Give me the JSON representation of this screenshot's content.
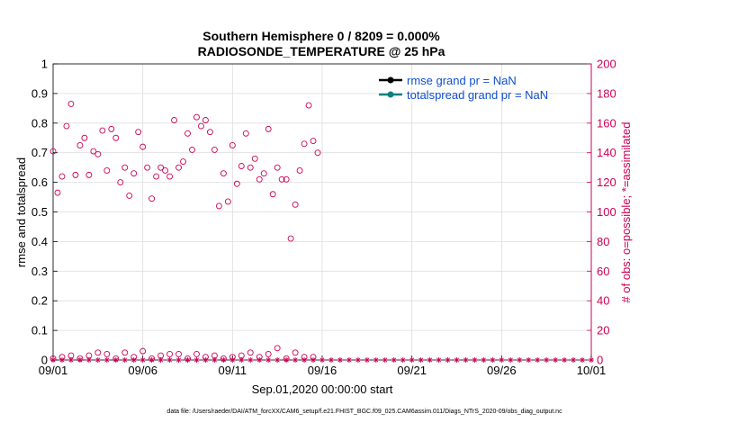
{
  "chart_data": {
    "type": "scatter",
    "title": "Southern Hemisphere 0 / 8209 = 0.000%",
    "subtitle": "RADIOSONDE_TEMPERATURE @ 25 hPa",
    "xlabel": "Sep.01,2020 00:00:00 start",
    "ylabel_left": "rmse and totalspread",
    "ylabel_right": "# of obs: o=possible; *=assimilated",
    "xlim": [
      0,
      30
    ],
    "xticks": [
      {
        "x": 0,
        "label": "09/01"
      },
      {
        "x": 5,
        "label": "09/06"
      },
      {
        "x": 10,
        "label": "09/11"
      },
      {
        "x": 15,
        "label": "09/16"
      },
      {
        "x": 20,
        "label": "09/21"
      },
      {
        "x": 25,
        "label": "09/26"
      },
      {
        "x": 30,
        "label": "10/01"
      }
    ],
    "ylim_left": [
      0,
      1
    ],
    "yticks_left": [
      "0",
      "0.1",
      "0.2",
      "0.3",
      "0.4",
      "0.5",
      "0.6",
      "0.7",
      "0.8",
      "0.9",
      "1"
    ],
    "ylim_right": [
      0,
      200
    ],
    "yticks_right": [
      "0",
      "20",
      "40",
      "60",
      "80",
      "100",
      "120",
      "140",
      "160",
      "180",
      "200"
    ],
    "grid": true,
    "legend_position": "top-right",
    "series": [
      {
        "name": "rmse grand pr = NaN",
        "color": "#000000",
        "axis": "left",
        "values": []
      },
      {
        "name": "totalspread grand pr = NaN",
        "color": "#0f8080",
        "axis": "left",
        "values": []
      },
      {
        "axis": "right",
        "marker": "open-circle",
        "color": "#cc0055",
        "points": [
          [
            0.0,
            141
          ],
          [
            0.25,
            113
          ],
          [
            0.5,
            124
          ],
          [
            0.75,
            158
          ],
          [
            1.0,
            173
          ],
          [
            1.25,
            125
          ],
          [
            1.5,
            145
          ],
          [
            1.75,
            150
          ],
          [
            2.0,
            125
          ],
          [
            2.25,
            141
          ],
          [
            2.5,
            139
          ],
          [
            2.75,
            155
          ],
          [
            3.0,
            128
          ],
          [
            3.25,
            156
          ],
          [
            3.5,
            150
          ],
          [
            3.75,
            120
          ],
          [
            4.0,
            130
          ],
          [
            4.25,
            111
          ],
          [
            4.5,
            126
          ],
          [
            4.75,
            154
          ],
          [
            5.0,
            144
          ],
          [
            5.25,
            130
          ],
          [
            5.5,
            109
          ],
          [
            5.75,
            124
          ],
          [
            6.0,
            130
          ],
          [
            6.25,
            128
          ],
          [
            6.5,
            124
          ],
          [
            6.75,
            162
          ],
          [
            7.0,
            130
          ],
          [
            7.25,
            134
          ],
          [
            7.5,
            153
          ],
          [
            7.75,
            142
          ],
          [
            8.0,
            164
          ],
          [
            8.25,
            158
          ],
          [
            8.5,
            162
          ],
          [
            8.75,
            154
          ],
          [
            9.0,
            142
          ],
          [
            9.25,
            104
          ],
          [
            9.5,
            126
          ],
          [
            9.75,
            107
          ],
          [
            10.0,
            145
          ],
          [
            10.25,
            119
          ],
          [
            10.5,
            131
          ],
          [
            10.75,
            153
          ],
          [
            11.0,
            130
          ],
          [
            11.25,
            136
          ],
          [
            11.5,
            122
          ],
          [
            11.75,
            126
          ],
          [
            12.0,
            156
          ],
          [
            12.25,
            112
          ],
          [
            12.5,
            130
          ],
          [
            12.75,
            122
          ],
          [
            13.0,
            122
          ],
          [
            13.25,
            82
          ],
          [
            13.5,
            105
          ],
          [
            13.75,
            128
          ],
          [
            14.0,
            146
          ],
          [
            14.25,
            172
          ],
          [
            14.5,
            148
          ],
          [
            14.75,
            140
          ],
          [
            0.0,
            1
          ],
          [
            0.5,
            2
          ],
          [
            1.0,
            3
          ],
          [
            1.5,
            1
          ],
          [
            2.0,
            3
          ],
          [
            2.5,
            5
          ],
          [
            3.0,
            4
          ],
          [
            3.5,
            1
          ],
          [
            4.0,
            5
          ],
          [
            4.5,
            2
          ],
          [
            5.0,
            6
          ],
          [
            5.5,
            1
          ],
          [
            6.0,
            3
          ],
          [
            6.5,
            4
          ],
          [
            7.0,
            4
          ],
          [
            7.5,
            1
          ],
          [
            8.0,
            4
          ],
          [
            8.5,
            2
          ],
          [
            9.0,
            3
          ],
          [
            9.5,
            1
          ],
          [
            10.0,
            2
          ],
          [
            10.5,
            3
          ],
          [
            11.0,
            5
          ],
          [
            11.5,
            2
          ],
          [
            12.0,
            4
          ],
          [
            12.5,
            8
          ],
          [
            13.0,
            1
          ],
          [
            13.5,
            5
          ],
          [
            14.0,
            2
          ],
          [
            14.5,
            2
          ]
        ]
      },
      {
        "axis": "right",
        "marker": "asterisk",
        "color": "#cc0055",
        "values_note": "",
        "points": [
          [
            0.0,
            0
          ],
          [
            0.5,
            0
          ],
          [
            1.0,
            0
          ],
          [
            1.5,
            0
          ],
          [
            2.0,
            0
          ],
          [
            2.5,
            0
          ],
          [
            3.0,
            0
          ],
          [
            3.5,
            0
          ],
          [
            4.0,
            0
          ],
          [
            4.5,
            0
          ],
          [
            5.0,
            0
          ],
          [
            5.5,
            0
          ],
          [
            6.0,
            0
          ],
          [
            6.5,
            0
          ],
          [
            7.0,
            0
          ],
          [
            7.5,
            0
          ],
          [
            8.0,
            0
          ],
          [
            8.5,
            0
          ],
          [
            9.0,
            0
          ],
          [
            9.5,
            0
          ],
          [
            10.0,
            0
          ],
          [
            10.5,
            0
          ],
          [
            11.0,
            0
          ],
          [
            11.5,
            0
          ],
          [
            12.0,
            0
          ],
          [
            12.5,
            0
          ],
          [
            13.0,
            0
          ],
          [
            13.5,
            0
          ],
          [
            14.0,
            0
          ],
          [
            14.5,
            0
          ],
          [
            15.0,
            0
          ],
          [
            15.5,
            0
          ],
          [
            16.0,
            0
          ],
          [
            16.5,
            0
          ],
          [
            17.0,
            0
          ],
          [
            17.5,
            0
          ],
          [
            18.0,
            0
          ],
          [
            18.5,
            0
          ],
          [
            19.0,
            0
          ],
          [
            19.5,
            0
          ],
          [
            20.0,
            0
          ],
          [
            20.5,
            0
          ],
          [
            21.0,
            0
          ],
          [
            21.5,
            0
          ],
          [
            22.0,
            0
          ],
          [
            22.5,
            0
          ],
          [
            23.0,
            0
          ],
          [
            23.5,
            0
          ],
          [
            24.0,
            0
          ],
          [
            24.5,
            0
          ],
          [
            25.0,
            0
          ],
          [
            25.5,
            0
          ],
          [
            26.0,
            0
          ],
          [
            26.5,
            0
          ],
          [
            27.0,
            0
          ],
          [
            27.5,
            0
          ],
          [
            28.0,
            0
          ],
          [
            28.5,
            0
          ],
          [
            29.0,
            0
          ],
          [
            29.5,
            0
          ],
          [
            30.0,
            0
          ]
        ]
      }
    ],
    "footnote": "data file: /Users/raeder/DAI/ATM_forcXX/CAM6_setup/f.e21.FHIST_BGC.f09_025.CAM6assim.011/Diags_NTrS_2020-09/obs_diag_output.nc"
  },
  "colors": {
    "left_axis": "#000000",
    "right_axis": "#cc0055",
    "legend_text": "#0f4fd1",
    "grid": "#dddddd"
  }
}
